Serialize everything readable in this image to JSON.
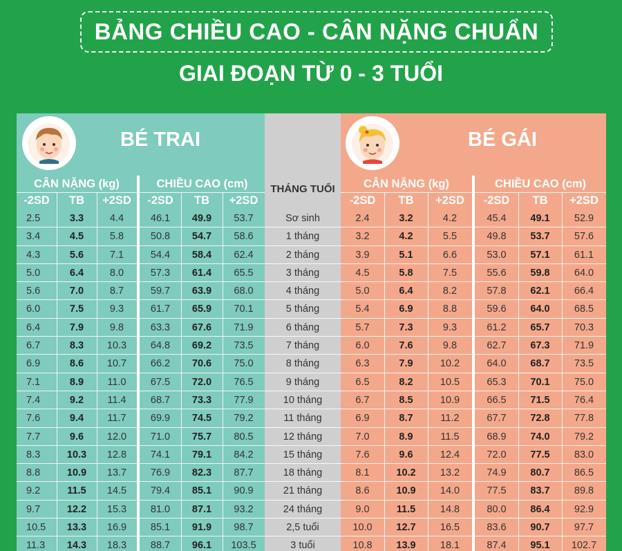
{
  "title": "BẢNG CHIỀU CAO - CÂN NẶNG CHUẨN",
  "subtitle": "GIAI ĐOẠN TỪ 0 - 3 TUỔI",
  "colors": {
    "background": "#22a34a",
    "boy": "#7fcbbd",
    "middle": "#cfcfd0",
    "girl": "#f4a88b"
  },
  "boy": {
    "label": "BÉ TRAI",
    "avatar_icon": "boy-face-icon",
    "weight_header": "CÂN NẶNG (kg)",
    "height_header": "CHIỀU CAO (cm)"
  },
  "girl": {
    "label": "BÉ GÁI",
    "avatar_icon": "girl-face-icon",
    "weight_header": "CÂN NẶNG (kg)",
    "height_header": "CHIỀU CAO (cm)"
  },
  "month_header": "THÁNG TUỔI",
  "sub_headers": [
    "-2SD",
    "TB",
    "+2SD"
  ],
  "rows": [
    {
      "age": "Sơ sinh",
      "boy": [
        "2.5",
        "3.3",
        "4.4",
        "46.1",
        "49.9",
        "53.7"
      ],
      "girl": [
        "2.4",
        "3.2",
        "4.2",
        "45.4",
        "49.1",
        "52.9"
      ]
    },
    {
      "age": "1 tháng",
      "boy": [
        "3.4",
        "4.5",
        "5.8",
        "50.8",
        "54.7",
        "58.6"
      ],
      "girl": [
        "3.2",
        "4.2",
        "5.5",
        "49.8",
        "53.7",
        "57.6"
      ]
    },
    {
      "age": "2 tháng",
      "boy": [
        "4.3",
        "5.6",
        "7.1",
        "54.4",
        "58.4",
        "62.4"
      ],
      "girl": [
        "3.9",
        "5.1",
        "6.6",
        "53.0",
        "57.1",
        "61.1"
      ]
    },
    {
      "age": "3 tháng",
      "boy": [
        "5.0",
        "6.4",
        "8.0",
        "57.3",
        "61.4",
        "65.5"
      ],
      "girl": [
        "4.5",
        "5.8",
        "7.5",
        "55.6",
        "59.8",
        "64.0"
      ]
    },
    {
      "age": "4 tháng",
      "boy": [
        "5.6",
        "7.0",
        "8.7",
        "59.7",
        "63.9",
        "68.0"
      ],
      "girl": [
        "5.0",
        "6.4",
        "8.2",
        "57.8",
        "62.1",
        "66.4"
      ]
    },
    {
      "age": "5 tháng",
      "boy": [
        "6.0",
        "7.5",
        "9.3",
        "61.7",
        "65.9",
        "70.1"
      ],
      "girl": [
        "5.4",
        "6.9",
        "8.8",
        "59.6",
        "64.0",
        "68.5"
      ]
    },
    {
      "age": "6 tháng",
      "boy": [
        "6.4",
        "7.9",
        "9.8",
        "63.3",
        "67.6",
        "71.9"
      ],
      "girl": [
        "5.7",
        "7.3",
        "9.3",
        "61.2",
        "65.7",
        "70.3"
      ]
    },
    {
      "age": "7 tháng",
      "boy": [
        "6.7",
        "8.3",
        "10.3",
        "64.8",
        "69.2",
        "73.5"
      ],
      "girl": [
        "6.0",
        "7.6",
        "9.8",
        "62.7",
        "67.3",
        "71.9"
      ]
    },
    {
      "age": "8 tháng",
      "boy": [
        "6.9",
        "8.6",
        "10.7",
        "66.2",
        "70.6",
        "75.0"
      ],
      "girl": [
        "6.3",
        "7.9",
        "10.2",
        "64.0",
        "68.7",
        "73.5"
      ]
    },
    {
      "age": "9 tháng",
      "boy": [
        "7.1",
        "8.9",
        "11.0",
        "67.5",
        "72.0",
        "76.5"
      ],
      "girl": [
        "6.5",
        "8.2",
        "10.5",
        "65.3",
        "70.1",
        "75.0"
      ]
    },
    {
      "age": "10 tháng",
      "boy": [
        "7.4",
        "9.2",
        "11.4",
        "68.7",
        "73.3",
        "77.9"
      ],
      "girl": [
        "6.7",
        "8.5",
        "10.9",
        "66.5",
        "71.5",
        "76.4"
      ]
    },
    {
      "age": "11 tháng",
      "boy": [
        "7.6",
        "9.4",
        "11.7",
        "69.9",
        "74.5",
        "79.2"
      ],
      "girl": [
        "6.9",
        "8.7",
        "11.2",
        "67.7",
        "72.8",
        "77.8"
      ]
    },
    {
      "age": "12 tháng",
      "boy": [
        "7.7",
        "9.6",
        "12.0",
        "71.0",
        "75.7",
        "80.5"
      ],
      "girl": [
        "7.0",
        "8.9",
        "11.5",
        "68.9",
        "74.0",
        "79.2"
      ]
    },
    {
      "age": "15 tháng",
      "boy": [
        "8.3",
        "10.3",
        "12.8",
        "74.1",
        "79.1",
        "84.2"
      ],
      "girl": [
        "7.6",
        "9.6",
        "12.4",
        "72.0",
        "77.5",
        "83.0"
      ]
    },
    {
      "age": "18 tháng",
      "boy": [
        "8.8",
        "10.9",
        "13.7",
        "76.9",
        "82.3",
        "87.7"
      ],
      "girl": [
        "8.1",
        "10.2",
        "13.2",
        "74.9",
        "80.7",
        "86.5"
      ]
    },
    {
      "age": "21 tháng",
      "boy": [
        "9.2",
        "11.5",
        "14.5",
        "79.4",
        "85.1",
        "90.9"
      ],
      "girl": [
        "8.6",
        "10.9",
        "14.0",
        "77.5",
        "83.7",
        "89.8"
      ]
    },
    {
      "age": "24 tháng",
      "boy": [
        "9.7",
        "12.2",
        "15.3",
        "81.0",
        "87.1",
        "93.2"
      ],
      "girl": [
        "9.0",
        "11.5",
        "14.8",
        "80.0",
        "86.4",
        "92.9"
      ]
    },
    {
      "age": "2,5 tuổi",
      "boy": [
        "10.5",
        "13.3",
        "16.9",
        "85.1",
        "91.9",
        "98.7"
      ],
      "girl": [
        "10.0",
        "12.7",
        "16.5",
        "83.6",
        "90.7",
        "97.7"
      ]
    },
    {
      "age": "3 tuổi",
      "boy": [
        "11.3",
        "14.3",
        "18.3",
        "88.7",
        "96.1",
        "103.5"
      ],
      "girl": [
        "10.8",
        "13.9",
        "18.1",
        "87.4",
        "95.1",
        "102.7"
      ]
    }
  ]
}
